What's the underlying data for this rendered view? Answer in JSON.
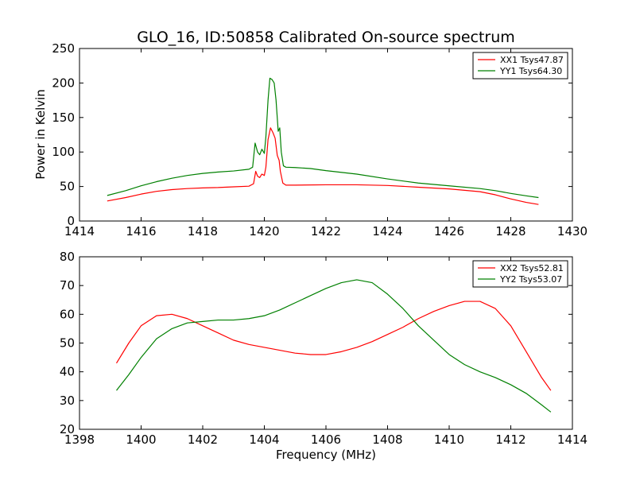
{
  "chart_data": [
    {
      "type": "line",
      "title": "GLO_16, ID:50858 Calibrated On-source spectrum",
      "xlabel": "",
      "ylabel": "Power in Kelvin",
      "xlim": [
        1414,
        1430
      ],
      "ylim": [
        0,
        250
      ],
      "xticks": [
        1414,
        1416,
        1418,
        1420,
        1422,
        1424,
        1426,
        1428,
        1430
      ],
      "yticks": [
        0,
        50,
        100,
        150,
        200,
        250
      ],
      "legend_position": "top-right",
      "grid": false,
      "series": [
        {
          "name": "XX1 Tsys47.87",
          "color": "#ff0000",
          "points": [
            [
              1414.9,
              29
            ],
            [
              1415.5,
              34
            ],
            [
              1416.0,
              39
            ],
            [
              1416.5,
              43
            ],
            [
              1417.0,
              45.5
            ],
            [
              1417.5,
              47
            ],
            [
              1418.0,
              48
            ],
            [
              1418.5,
              48.5
            ],
            [
              1419.0,
              49.5
            ],
            [
              1419.5,
              50.5
            ],
            [
              1419.65,
              54
            ],
            [
              1419.72,
              72
            ],
            [
              1419.78,
              65
            ],
            [
              1419.85,
              63
            ],
            [
              1419.92,
              68
            ],
            [
              1420.0,
              66
            ],
            [
              1420.05,
              78
            ],
            [
              1420.12,
              118
            ],
            [
              1420.2,
              135
            ],
            [
              1420.28,
              128
            ],
            [
              1420.35,
              120
            ],
            [
              1420.42,
              95
            ],
            [
              1420.48,
              88
            ],
            [
              1420.52,
              72
            ],
            [
              1420.6,
              55
            ],
            [
              1420.7,
              52
            ],
            [
              1421.0,
              52
            ],
            [
              1422.0,
              52.5
            ],
            [
              1423.0,
              52.5
            ],
            [
              1424.0,
              51.5
            ],
            [
              1425.0,
              49
            ],
            [
              1426.0,
              46.5
            ],
            [
              1427.0,
              42.5
            ],
            [
              1427.5,
              38
            ],
            [
              1428.0,
              32
            ],
            [
              1428.5,
              27
            ],
            [
              1428.9,
              24
            ]
          ]
        },
        {
          "name": "YY1 Tsys64.30",
          "color": "#008000",
          "points": [
            [
              1414.9,
              37
            ],
            [
              1415.5,
              44
            ],
            [
              1416.0,
              51
            ],
            [
              1416.5,
              57
            ],
            [
              1417.0,
              62
            ],
            [
              1417.5,
              66
            ],
            [
              1418.0,
              69
            ],
            [
              1418.5,
              71
            ],
            [
              1419.0,
              72.5
            ],
            [
              1419.5,
              75
            ],
            [
              1419.62,
              78
            ],
            [
              1419.7,
              113
            ],
            [
              1419.78,
              100
            ],
            [
              1419.85,
              96
            ],
            [
              1419.92,
              104
            ],
            [
              1420.0,
              98
            ],
            [
              1420.05,
              122
            ],
            [
              1420.12,
              175
            ],
            [
              1420.18,
              207
            ],
            [
              1420.25,
              205
            ],
            [
              1420.32,
              200
            ],
            [
              1420.38,
              175
            ],
            [
              1420.45,
              130
            ],
            [
              1420.5,
              135
            ],
            [
              1420.55,
              100
            ],
            [
              1420.62,
              80
            ],
            [
              1420.7,
              78
            ],
            [
              1421.0,
              77.5
            ],
            [
              1421.5,
              76
            ],
            [
              1422.0,
              73
            ],
            [
              1423.0,
              68
            ],
            [
              1424.0,
              61
            ],
            [
              1425.0,
              55
            ],
            [
              1426.0,
              51
            ],
            [
              1427.0,
              47
            ],
            [
              1427.5,
              44
            ],
            [
              1428.0,
              40
            ],
            [
              1428.5,
              36.5
            ],
            [
              1428.9,
              34
            ]
          ]
        }
      ]
    },
    {
      "type": "line",
      "title": "",
      "xlabel": "Frequency (MHz)",
      "ylabel": "",
      "xlim": [
        1398,
        1414
      ],
      "ylim": [
        20,
        80
      ],
      "xticks": [
        1398,
        1400,
        1402,
        1404,
        1406,
        1408,
        1410,
        1412,
        1414
      ],
      "yticks": [
        20,
        30,
        40,
        50,
        60,
        70,
        80
      ],
      "legend_position": "top-right",
      "grid": false,
      "series": [
        {
          "name": "XX2 Tsys52.81",
          "color": "#ff0000",
          "points": [
            [
              1399.2,
              43
            ],
            [
              1399.6,
              50
            ],
            [
              1400.0,
              56
            ],
            [
              1400.5,
              59.5
            ],
            [
              1401.0,
              60
            ],
            [
              1401.5,
              58.5
            ],
            [
              1402.0,
              56
            ],
            [
              1402.5,
              53.5
            ],
            [
              1403.0,
              51
            ],
            [
              1403.5,
              49.5
            ],
            [
              1404.0,
              48.5
            ],
            [
              1404.5,
              47.5
            ],
            [
              1405.0,
              46.5
            ],
            [
              1405.5,
              46
            ],
            [
              1406.0,
              46
            ],
            [
              1406.5,
              47
            ],
            [
              1407.0,
              48.5
            ],
            [
              1407.5,
              50.5
            ],
            [
              1408.0,
              53
            ],
            [
              1408.5,
              55.5
            ],
            [
              1409.0,
              58.5
            ],
            [
              1409.5,
              61
            ],
            [
              1410.0,
              63
            ],
            [
              1410.5,
              64.5
            ],
            [
              1411.0,
              64.5
            ],
            [
              1411.5,
              62
            ],
            [
              1412.0,
              56
            ],
            [
              1412.5,
              47
            ],
            [
              1413.0,
              38
            ],
            [
              1413.3,
              33.5
            ]
          ]
        },
        {
          "name": "YY2 Tsys53.07",
          "color": "#008000",
          "points": [
            [
              1399.2,
              33.5
            ],
            [
              1399.6,
              39
            ],
            [
              1400.0,
              45
            ],
            [
              1400.5,
              51.5
            ],
            [
              1401.0,
              55
            ],
            [
              1401.5,
              57
            ],
            [
              1402.0,
              57.5
            ],
            [
              1402.5,
              58
            ],
            [
              1403.0,
              58
            ],
            [
              1403.5,
              58.5
            ],
            [
              1404.0,
              59.5
            ],
            [
              1404.5,
              61.5
            ],
            [
              1405.0,
              64
            ],
            [
              1405.5,
              66.5
            ],
            [
              1406.0,
              69
            ],
            [
              1406.5,
              71
            ],
            [
              1407.0,
              72
            ],
            [
              1407.5,
              71
            ],
            [
              1408.0,
              67
            ],
            [
              1408.5,
              62
            ],
            [
              1409.0,
              56
            ],
            [
              1409.5,
              51
            ],
            [
              1410.0,
              46
            ],
            [
              1410.5,
              42.5
            ],
            [
              1411.0,
              40
            ],
            [
              1411.5,
              38
            ],
            [
              1412.0,
              35.5
            ],
            [
              1412.5,
              32.5
            ],
            [
              1413.0,
              28.5
            ],
            [
              1413.3,
              26
            ]
          ]
        }
      ]
    }
  ]
}
